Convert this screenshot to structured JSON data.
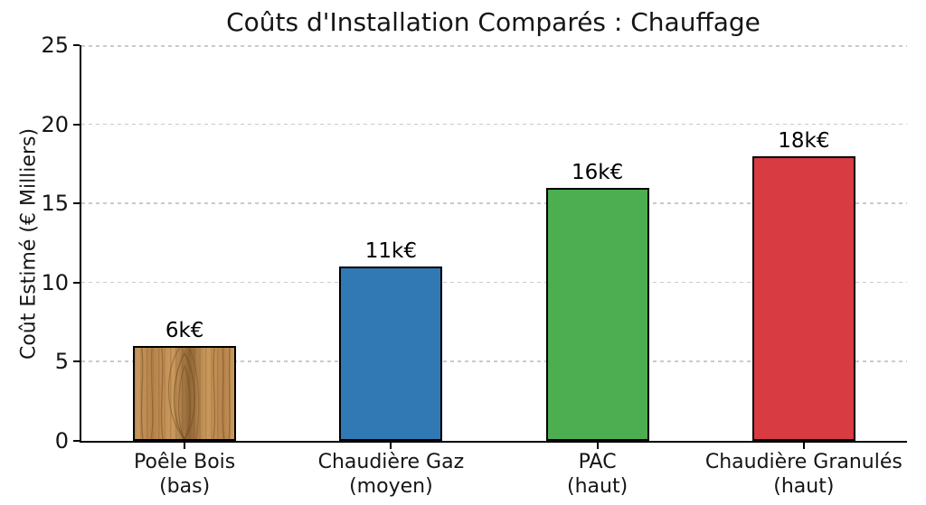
{
  "chart_data": {
    "type": "bar",
    "title": "Coûts d'Installation Comparés : Chauffage",
    "ylabel": "Coût Estimé (€ Milliers)",
    "xlabel": "",
    "ylim": [
      0,
      25
    ],
    "yticks": [
      0,
      5,
      10,
      15,
      20,
      25
    ],
    "grid": {
      "axis": "y",
      "style": "dashed",
      "color": "#c4c4c4"
    },
    "legend": "none",
    "categories": [
      {
        "name": "Poêle Bois",
        "tier": "(bas)"
      },
      {
        "name": "Chaudière Gaz",
        "tier": "(moyen)"
      },
      {
        "name": "PAC",
        "tier": "(haut)"
      },
      {
        "name": "Chaudière Granulés",
        "tier": "(haut)"
      }
    ],
    "values": [
      6,
      11,
      16,
      18
    ],
    "unit": "k€",
    "bar_labels": [
      "6k€",
      "11k€",
      "16k€",
      "18k€"
    ],
    "bar_fills": [
      "wood-texture",
      "#3179b4",
      "#4cae50",
      "#d93b42"
    ],
    "bar_edge_color": "#000000",
    "wood_texture": {
      "base": "#b5834b",
      "light": "#cb9a5e",
      "dark": "#8f6434",
      "grain": "#6f4a20"
    }
  }
}
